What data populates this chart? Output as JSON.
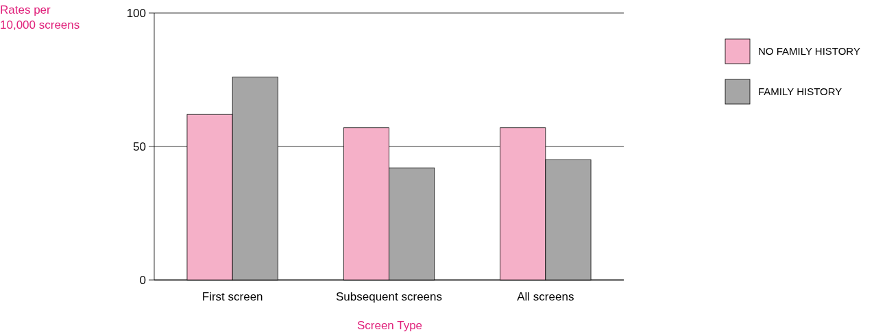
{
  "chart_data": {
    "type": "bar",
    "ylabel": "Rates per 10,000 screens",
    "xlabel": "Screen Type",
    "categories": [
      "First screen",
      "Subsequent screens",
      "All screens"
    ],
    "series": [
      {
        "name": "NO FAMILY HISTORY",
        "color": "#f5b0c8",
        "values": [
          62,
          57,
          57
        ]
      },
      {
        "name": "FAMILY HISTORY",
        "color": "#a6a6a6",
        "values": [
          76,
          42,
          45
        ]
      }
    ],
    "ylim": [
      0,
      100
    ],
    "yticks": [
      0,
      50,
      100
    ],
    "grid": "y",
    "legend": "right"
  }
}
